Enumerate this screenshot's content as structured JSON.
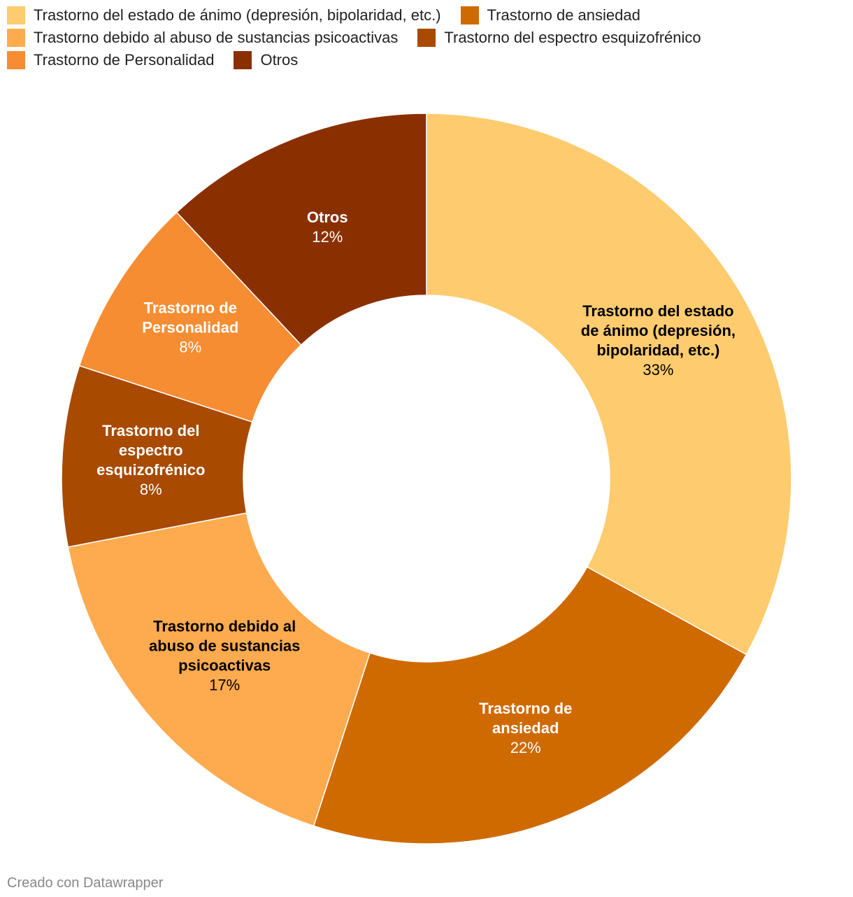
{
  "chart_data": {
    "type": "pie",
    "donut": true,
    "categories": [
      "Trastorno del estado de ánimo (depresión, bipolaridad, etc.)",
      "Trastorno de ansiedad",
      "Trastorno debido al abuso de sustancias psicoactivas",
      "Trastorno del espectro esquizofrénico",
      "Trastorno de Personalidad",
      "Otros"
    ],
    "values": [
      33,
      22,
      17,
      8,
      8,
      12
    ],
    "value_labels": [
      "33%",
      "22%",
      "17%",
      "8%",
      "8%",
      "12%"
    ],
    "colors": [
      "#fecb6e",
      "#cf6a00",
      "#feab4f",
      "#a84a00",
      "#f68d33",
      "#8a3000"
    ],
    "slice_labels": [
      [
        "Trastorno del estado",
        "de ánimo (depresión,",
        "bipolaridad, etc.)"
      ],
      [
        "Trastorno de",
        "ansiedad"
      ],
      [
        "Trastorno debido al",
        "abuso de sustancias",
        "psicoactivas"
      ],
      [
        "Trastorno del",
        "espectro",
        "esquizofrénico"
      ],
      [
        "Trastorno de",
        "Personalidad"
      ],
      [
        "Otros"
      ]
    ],
    "label_colors": [
      "#000000",
      "#ffffff",
      "#000000",
      "#ffffff",
      "#ffffff",
      "#ffffff"
    ],
    "legend_placement": "top"
  },
  "legend": {
    "rows": [
      [
        0,
        1
      ],
      [
        2,
        3
      ],
      [
        4,
        5
      ]
    ]
  },
  "footer": {
    "credit": "Creado con Datawrapper"
  }
}
